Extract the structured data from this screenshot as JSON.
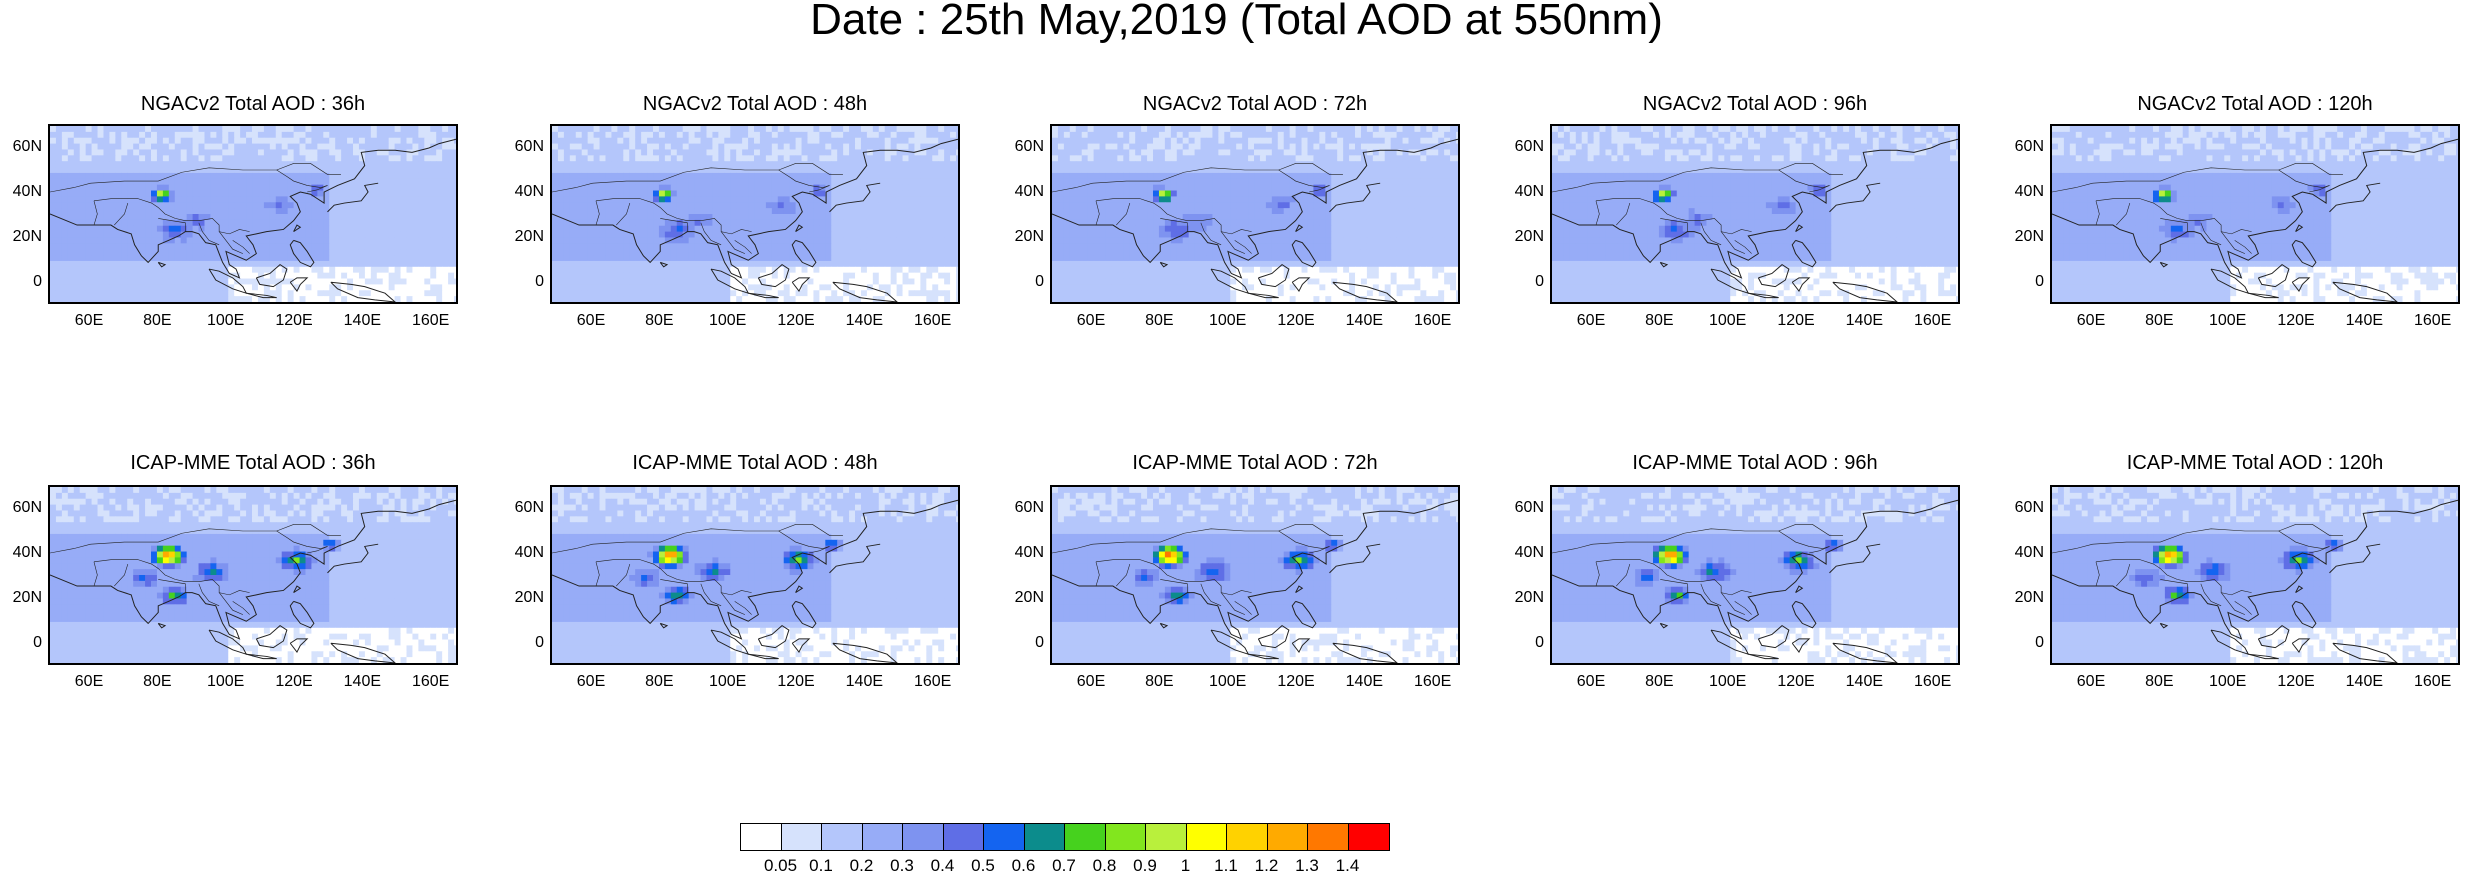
{
  "title": "Date : 25th May,2019 (Total AOD at 550nm)",
  "panels": [
    {
      "model": "NGACv2",
      "title": "NGACv2 Total AOD : 36h",
      "lead_hours": 36
    },
    {
      "model": "NGACv2",
      "title": "NGACv2 Total AOD : 48h",
      "lead_hours": 48
    },
    {
      "model": "NGACv2",
      "title": "NGACv2 Total AOD : 72h",
      "lead_hours": 72
    },
    {
      "model": "NGACv2",
      "title": "NGACv2 Total AOD : 96h",
      "lead_hours": 96
    },
    {
      "model": "NGACv2",
      "title": "NGACv2 Total AOD : 120h",
      "lead_hours": 120
    },
    {
      "model": "ICAP-MME",
      "title": "ICAP-MME Total AOD : 36h",
      "lead_hours": 36
    },
    {
      "model": "ICAP-MME",
      "title": "ICAP-MME Total AOD : 48h",
      "lead_hours": 48
    },
    {
      "model": "ICAP-MME",
      "title": "ICAP-MME Total AOD : 72h",
      "lead_hours": 72
    },
    {
      "model": "ICAP-MME",
      "title": "ICAP-MME Total AOD : 96h",
      "lead_hours": 96
    },
    {
      "model": "ICAP-MME",
      "title": "ICAP-MME Total AOD : 120h",
      "lead_hours": 120
    }
  ],
  "map_axes": {
    "lat_ticks": [
      "60N",
      "40N",
      "20N",
      "0"
    ],
    "lat_values": [
      60,
      40,
      20,
      0
    ],
    "lon_ticks": [
      "60E",
      "80E",
      "100E",
      "120E",
      "140E",
      "160E"
    ],
    "lon_values": [
      60,
      80,
      100,
      120,
      140,
      160
    ],
    "lon_range": [
      48,
      168
    ],
    "lat_range": [
      -10,
      70
    ]
  },
  "colorbar": {
    "labels": [
      "0.05",
      "0.1",
      "0.2",
      "0.3",
      "0.4",
      "0.5",
      "0.6",
      "0.7",
      "0.8",
      "0.9",
      "1",
      "1.1",
      "1.2",
      "1.3",
      "1.4"
    ],
    "colors": [
      "#ffffff",
      "#d6e2fc",
      "#b4c6fb",
      "#97acf7",
      "#7e93f0",
      "#5f6ee6",
      "#1464f0",
      "#0c8c8c",
      "#46d21e",
      "#82e61e",
      "#b9f03c",
      "#ffff00",
      "#ffd200",
      "#ffaa00",
      "#ff7800",
      "#ff0000"
    ]
  }
}
